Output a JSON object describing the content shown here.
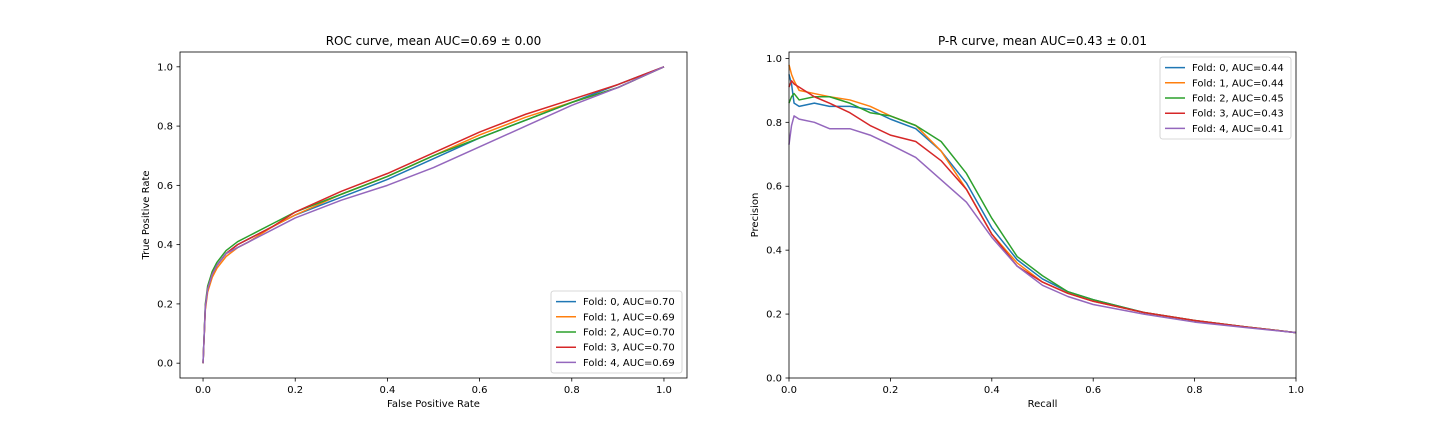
{
  "colors": [
    "#1f77b4",
    "#ff7f0e",
    "#2ca02c",
    "#d62728",
    "#9467bd"
  ],
  "chart_data": [
    {
      "type": "line",
      "title": "ROC curve, mean AUC=0.69 ± 0.00",
      "xlabel": "False Positive Rate",
      "ylabel": "True Positive Rate",
      "xlim": [
        -0.05,
        1.05
      ],
      "ylim": [
        -0.05,
        1.05
      ],
      "xticks": [
        0.0,
        0.2,
        0.4,
        0.6,
        0.8,
        1.0
      ],
      "xtick_labels": [
        "0.0",
        "0.2",
        "0.4",
        "0.6",
        "0.8",
        "1.0"
      ],
      "yticks": [
        0.0,
        0.2,
        0.4,
        0.6,
        0.8,
        1.0
      ],
      "ytick_labels": [
        "0.0",
        "0.2",
        "0.4",
        "0.6",
        "0.8",
        "1.0"
      ],
      "grid": false,
      "legend_position": "lower-right",
      "series": [
        {
          "name": "Fold: 0, AUC=0.70",
          "color": "#1f77b4",
          "x": [
            0,
            0.005,
            0.01,
            0.02,
            0.03,
            0.05,
            0.075,
            0.1,
            0.15,
            0.2,
            0.3,
            0.4,
            0.5,
            0.6,
            0.7,
            0.8,
            0.9,
            1.0
          ],
          "y": [
            0,
            0.19,
            0.25,
            0.3,
            0.33,
            0.37,
            0.4,
            0.42,
            0.46,
            0.5,
            0.56,
            0.62,
            0.69,
            0.76,
            0.82,
            0.88,
            0.94,
            1.0
          ]
        },
        {
          "name": "Fold: 1, AUC=0.69",
          "color": "#ff7f0e",
          "x": [
            0,
            0.005,
            0.01,
            0.02,
            0.03,
            0.05,
            0.075,
            0.1,
            0.15,
            0.2,
            0.3,
            0.4,
            0.5,
            0.6,
            0.7,
            0.8,
            0.9,
            1.0
          ],
          "y": [
            0,
            0.18,
            0.24,
            0.29,
            0.32,
            0.36,
            0.39,
            0.41,
            0.46,
            0.5,
            0.57,
            0.63,
            0.7,
            0.77,
            0.83,
            0.88,
            0.93,
            1.0
          ]
        },
        {
          "name": "Fold: 2, AUC=0.70",
          "color": "#2ca02c",
          "x": [
            0,
            0.005,
            0.01,
            0.02,
            0.03,
            0.05,
            0.075,
            0.1,
            0.15,
            0.2,
            0.3,
            0.4,
            0.5,
            0.6,
            0.7,
            0.8,
            0.9,
            1.0
          ],
          "y": [
            0,
            0.2,
            0.26,
            0.31,
            0.34,
            0.38,
            0.41,
            0.43,
            0.47,
            0.51,
            0.57,
            0.63,
            0.7,
            0.76,
            0.82,
            0.88,
            0.93,
            1.0
          ]
        },
        {
          "name": "Fold: 3, AUC=0.70",
          "color": "#d62728",
          "x": [
            0,
            0.005,
            0.01,
            0.02,
            0.03,
            0.05,
            0.075,
            0.1,
            0.15,
            0.2,
            0.3,
            0.4,
            0.5,
            0.6,
            0.7,
            0.8,
            0.9,
            1.0
          ],
          "y": [
            0,
            0.19,
            0.25,
            0.3,
            0.33,
            0.37,
            0.4,
            0.42,
            0.46,
            0.51,
            0.58,
            0.64,
            0.71,
            0.78,
            0.84,
            0.89,
            0.94,
            1.0
          ]
        },
        {
          "name": "Fold: 4, AUC=0.69",
          "color": "#9467bd",
          "x": [
            0,
            0.005,
            0.01,
            0.02,
            0.03,
            0.05,
            0.075,
            0.1,
            0.15,
            0.2,
            0.3,
            0.4,
            0.5,
            0.6,
            0.7,
            0.8,
            0.9,
            1.0
          ],
          "y": [
            0,
            0.19,
            0.25,
            0.3,
            0.33,
            0.37,
            0.39,
            0.41,
            0.45,
            0.49,
            0.55,
            0.6,
            0.66,
            0.73,
            0.8,
            0.87,
            0.93,
            1.0
          ]
        }
      ]
    },
    {
      "type": "line",
      "title": "P-R curve, mean AUC=0.43 ± 0.01",
      "xlabel": "Recall",
      "ylabel": "Precision",
      "xlim": [
        0.0,
        1.0
      ],
      "ylim": [
        0.0,
        1.02
      ],
      "xticks": [
        0.0,
        0.2,
        0.4,
        0.6,
        0.8,
        1.0
      ],
      "xtick_labels": [
        "0.0",
        "0.2",
        "0.4",
        "0.6",
        "0.8",
        "1.0"
      ],
      "yticks": [
        0.0,
        0.2,
        0.4,
        0.6,
        0.8,
        1.0
      ],
      "ytick_labels": [
        "0.0",
        "0.2",
        "0.4",
        "0.6",
        "0.8",
        "1.0"
      ],
      "grid": false,
      "legend_position": "upper-right",
      "series": [
        {
          "name": "Fold: 0, AUC=0.44",
          "color": "#1f77b4",
          "x": [
            0,
            0.005,
            0.01,
            0.02,
            0.05,
            0.08,
            0.12,
            0.16,
            0.2,
            0.25,
            0.3,
            0.35,
            0.4,
            0.45,
            0.5,
            0.55,
            0.6,
            0.7,
            0.8,
            0.9,
            1.0
          ],
          "y": [
            0.95,
            0.92,
            0.86,
            0.85,
            0.86,
            0.85,
            0.85,
            0.84,
            0.81,
            0.78,
            0.71,
            0.61,
            0.47,
            0.37,
            0.31,
            0.27,
            0.245,
            0.205,
            0.18,
            0.16,
            0.142
          ]
        },
        {
          "name": "Fold: 1, AUC=0.44",
          "color": "#ff7f0e",
          "x": [
            0,
            0.005,
            0.01,
            0.02,
            0.05,
            0.08,
            0.12,
            0.16,
            0.2,
            0.25,
            0.3,
            0.35,
            0.4,
            0.45,
            0.5,
            0.55,
            0.6,
            0.7,
            0.8,
            0.9,
            1.0
          ],
          "y": [
            0.98,
            0.95,
            0.93,
            0.9,
            0.89,
            0.88,
            0.87,
            0.85,
            0.82,
            0.79,
            0.71,
            0.59,
            0.45,
            0.36,
            0.3,
            0.265,
            0.24,
            0.205,
            0.18,
            0.16,
            0.142
          ]
        },
        {
          "name": "Fold: 2, AUC=0.45",
          "color": "#2ca02c",
          "x": [
            0,
            0.005,
            0.01,
            0.02,
            0.05,
            0.08,
            0.12,
            0.16,
            0.2,
            0.25,
            0.3,
            0.35,
            0.4,
            0.45,
            0.5,
            0.55,
            0.6,
            0.7,
            0.8,
            0.9,
            1.0
          ],
          "y": [
            0.86,
            0.88,
            0.89,
            0.87,
            0.88,
            0.88,
            0.86,
            0.83,
            0.82,
            0.79,
            0.74,
            0.64,
            0.5,
            0.38,
            0.32,
            0.27,
            0.245,
            0.205,
            0.18,
            0.16,
            0.142
          ]
        },
        {
          "name": "Fold: 3, AUC=0.43",
          "color": "#d62728",
          "x": [
            0,
            0.005,
            0.01,
            0.02,
            0.05,
            0.08,
            0.12,
            0.16,
            0.2,
            0.25,
            0.3,
            0.35,
            0.4,
            0.45,
            0.5,
            0.55,
            0.6,
            0.7,
            0.8,
            0.9,
            1.0
          ],
          "y": [
            0.91,
            0.93,
            0.92,
            0.91,
            0.88,
            0.86,
            0.83,
            0.79,
            0.76,
            0.74,
            0.68,
            0.59,
            0.45,
            0.35,
            0.3,
            0.265,
            0.24,
            0.205,
            0.18,
            0.16,
            0.142
          ]
        },
        {
          "name": "Fold: 4, AUC=0.41",
          "color": "#9467bd",
          "x": [
            0,
            0.005,
            0.01,
            0.02,
            0.05,
            0.08,
            0.12,
            0.16,
            0.2,
            0.25,
            0.3,
            0.35,
            0.4,
            0.45,
            0.5,
            0.55,
            0.6,
            0.7,
            0.8,
            0.9,
            1.0
          ],
          "y": [
            0.73,
            0.79,
            0.82,
            0.81,
            0.8,
            0.78,
            0.78,
            0.76,
            0.73,
            0.69,
            0.62,
            0.55,
            0.44,
            0.35,
            0.29,
            0.255,
            0.23,
            0.2,
            0.175,
            0.158,
            0.142
          ]
        }
      ]
    }
  ]
}
